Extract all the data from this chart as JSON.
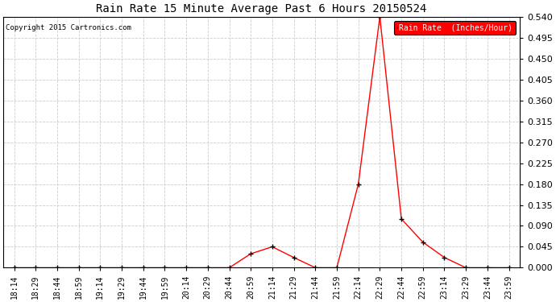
{
  "title": "Rain Rate 15 Minute Average Past 6 Hours 20150524",
  "copyright": "Copyright 2015 Cartronics.com",
  "legend_label": "Rain Rate  (Inches/Hour)",
  "background_color": "#ffffff",
  "line_color": "#ff0000",
  "marker_color": "#000000",
  "ylim": [
    0.0,
    0.54
  ],
  "yticks": [
    0.0,
    0.045,
    0.09,
    0.135,
    0.18,
    0.225,
    0.27,
    0.315,
    0.36,
    0.405,
    0.45,
    0.495,
    0.54
  ],
  "time_labels": [
    "18:14",
    "18:29",
    "18:44",
    "18:59",
    "19:14",
    "19:29",
    "19:44",
    "19:59",
    "20:14",
    "20:29",
    "20:44",
    "20:59",
    "21:14",
    "21:29",
    "21:44",
    "21:59",
    "22:14",
    "22:29",
    "22:44",
    "22:59",
    "23:14",
    "23:29",
    "23:44",
    "23:59"
  ],
  "values": [
    0.0,
    0.0,
    0.0,
    0.0,
    0.0,
    0.0,
    0.0,
    0.0,
    0.0,
    0.0,
    0.0,
    0.03,
    0.045,
    0.022,
    0.0,
    0.0,
    0.18,
    0.54,
    0.105,
    0.055,
    0.022,
    0.0,
    0.0,
    0.0
  ]
}
